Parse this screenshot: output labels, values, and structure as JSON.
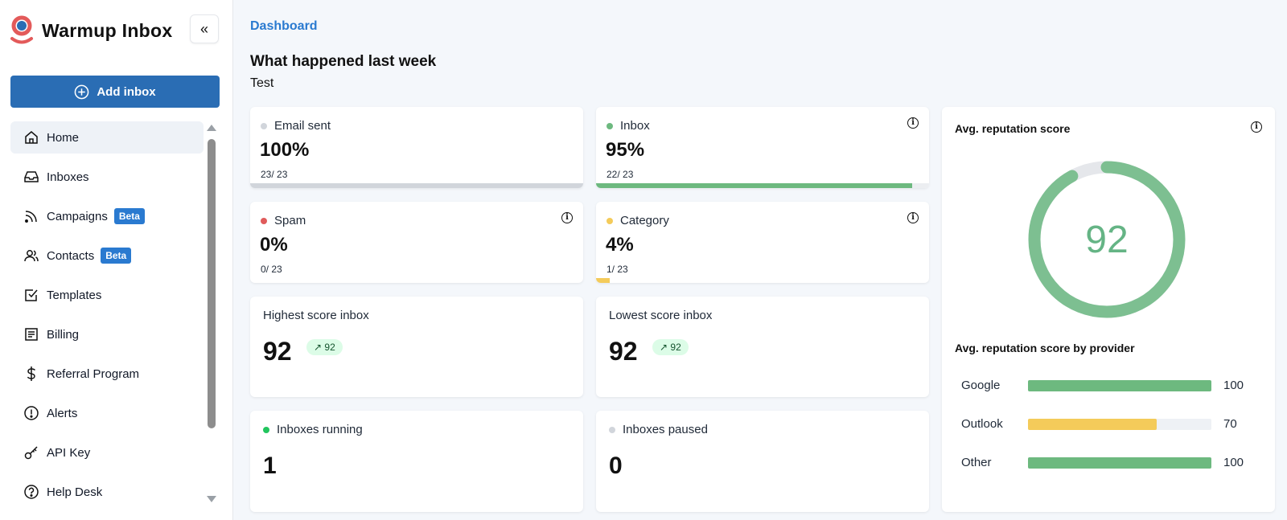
{
  "app": {
    "name": "Warmup Inbox"
  },
  "sidebar": {
    "add_inbox_label": "Add inbox",
    "items": [
      {
        "label": "Home",
        "icon": "home-icon",
        "active": true
      },
      {
        "label": "Inboxes",
        "icon": "inbox-icon"
      },
      {
        "label": "Campaigns",
        "icon": "rss-icon",
        "badge": "Beta"
      },
      {
        "label": "Contacts",
        "icon": "users-icon",
        "badge": "Beta"
      },
      {
        "label": "Templates",
        "icon": "checkbox-icon"
      },
      {
        "label": "Billing",
        "icon": "receipt-icon"
      },
      {
        "label": "Referral Program",
        "icon": "dollar-icon"
      },
      {
        "label": "Alerts",
        "icon": "alert-icon"
      },
      {
        "label": "API Key",
        "icon": "key-icon"
      },
      {
        "label": "Help Desk",
        "icon": "help-icon"
      }
    ]
  },
  "main": {
    "breadcrumb": "Dashboard",
    "heading": "What happened last week",
    "subtitle": "Test",
    "stats": {
      "email_sent": {
        "label": "Email sent",
        "value": "100%",
        "ratio": "23/ 23",
        "fill": 1.0,
        "color": "#d1d5db"
      },
      "inbox": {
        "label": "Inbox",
        "value": "95%",
        "ratio": "22/ 23",
        "fill": 0.95,
        "color": "#6db97f"
      },
      "spam": {
        "label": "Spam",
        "value": "0%",
        "ratio": "0/ 23",
        "fill": 0.0,
        "color": "#e05b5b"
      },
      "category": {
        "label": "Category",
        "value": "4%",
        "ratio": "1/ 23",
        "fill": 0.04,
        "color": "#f4cb5a"
      }
    },
    "highest": {
      "label": "Highest score inbox",
      "value": "92",
      "trend": "92"
    },
    "lowest": {
      "label": "Lowest score inbox",
      "value": "92",
      "trend": "92"
    },
    "running": {
      "label": "Inboxes running",
      "value": "1",
      "color": "#22c55e"
    },
    "paused": {
      "label": "Inboxes paused",
      "value": "0",
      "color": "#d1d5db"
    },
    "reputation": {
      "title": "Avg. reputation score",
      "score": "92",
      "score_fraction": 0.92,
      "by_provider_title": "Avg. reputation score by provider",
      "providers": [
        {
          "name": "Google",
          "value": "100",
          "fraction": 1.0,
          "color": "#6db97f"
        },
        {
          "name": "Outlook",
          "value": "70",
          "fraction": 0.7,
          "color": "#f4cb5a"
        },
        {
          "name": "Other",
          "value": "100",
          "fraction": 1.0,
          "color": "#6db97f"
        }
      ]
    }
  }
}
